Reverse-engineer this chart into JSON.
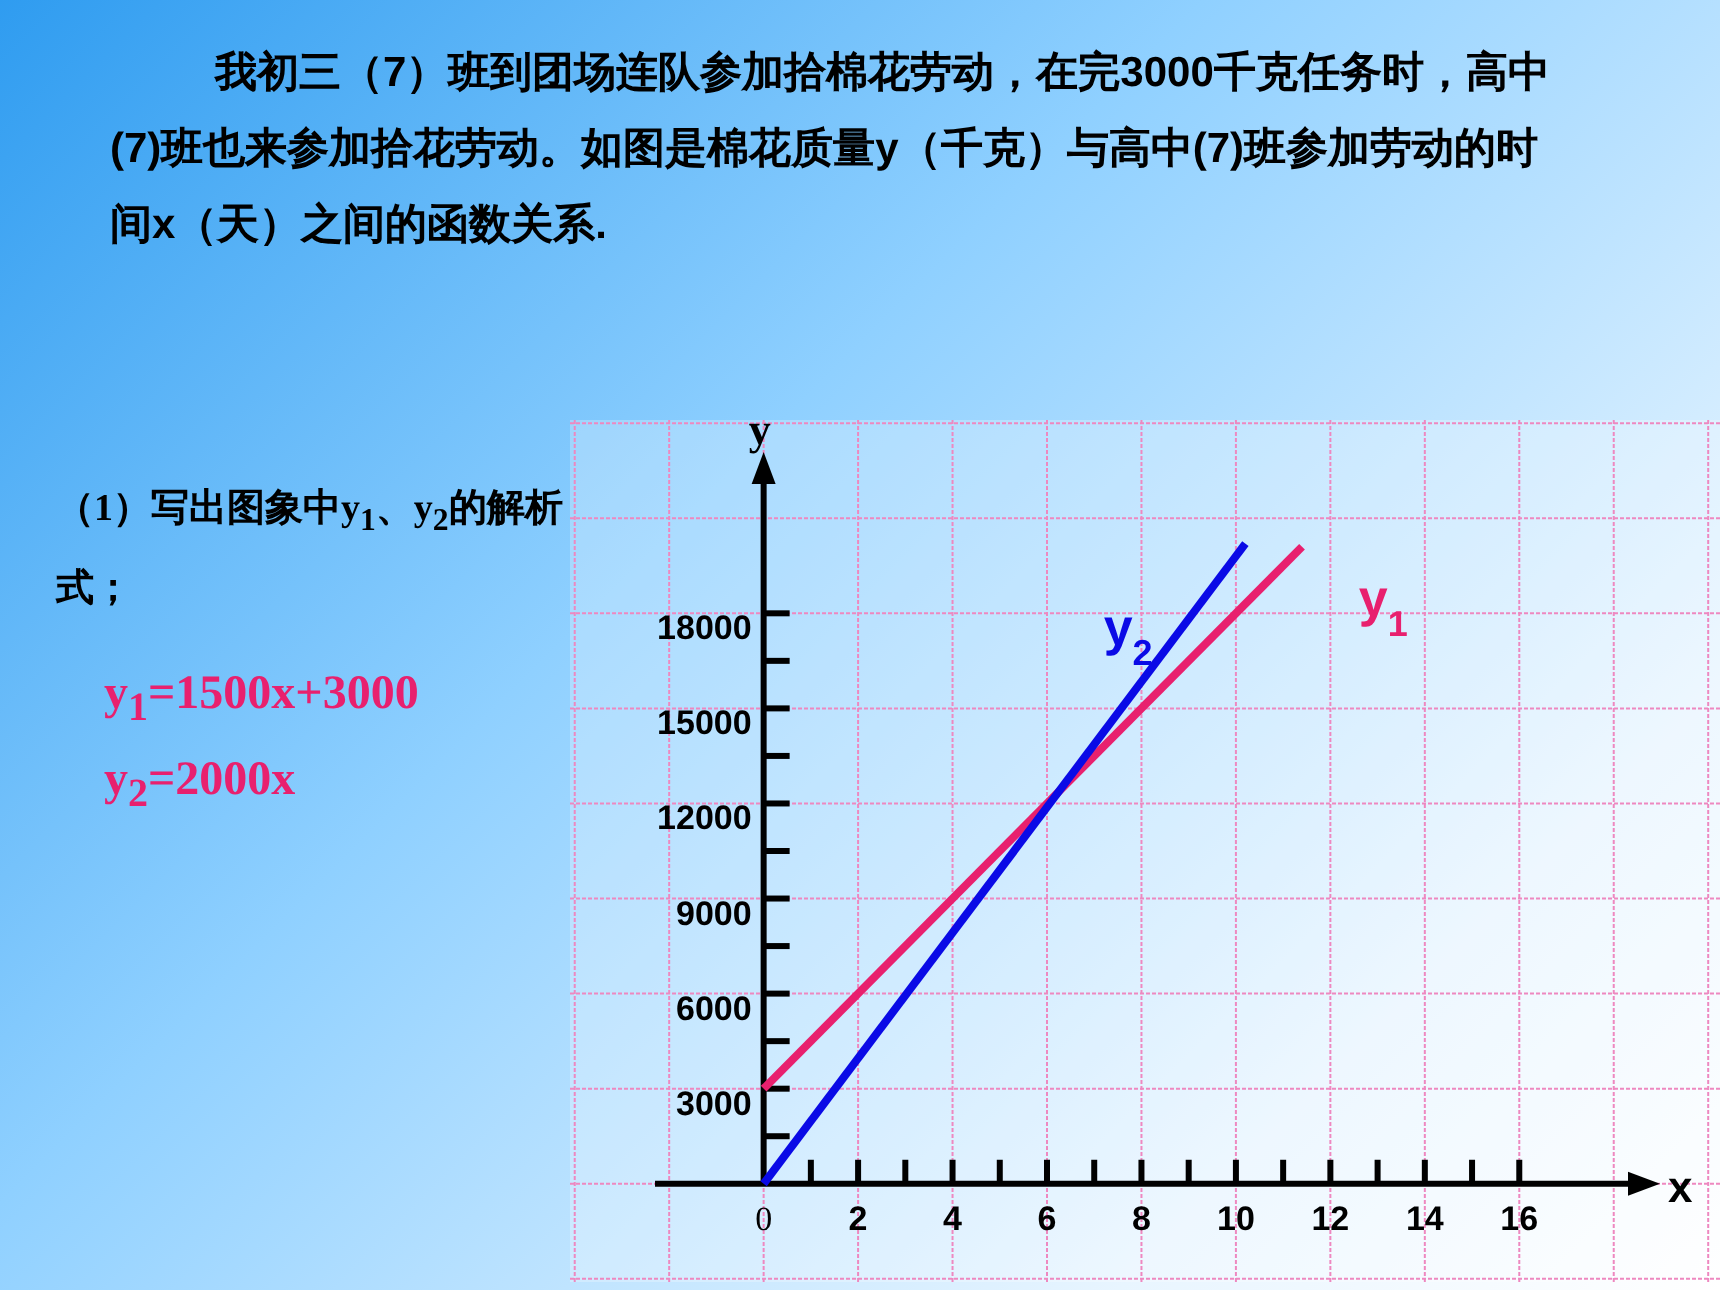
{
  "chart_data": {
    "type": "line",
    "title": "我初三（7）班到团场连队参加拾棉花劳动，在完3000千克任务时，高中(7)班也来参加拾花劳动。如图是棉花质量y（千克）与高中(7)班参加劳动的时间x（天）之间的函数关系.",
    "annotations": [
      "（1）写出图象中y$_{1}$、y$_{2}$的解析式；",
      "y$_{1}$=1500x+3000",
      "y$_{2}$=2000x"
    ],
    "xlabel": "x",
    "ylabel": "y",
    "series": [
      {
        "name": "y$_{1}$",
        "color": "#e8206e",
        "x": [
          0,
          11.4
        ],
        "values": [
          3000,
          20100
        ]
      },
      {
        "name": "y$_{2}$",
        "color": "#0a0ae6",
        "x": [
          0,
          10.2
        ],
        "values": [
          0,
          20200
        ]
      }
    ],
    "xlim": [
      -4.1,
      20.25
    ],
    "ylim": [
      -3100,
      24100
    ],
    "xticks": [
      0,
      {
        "value": 1,
        "label": null
      },
      2,
      {
        "value": 3,
        "label": null
      },
      4,
      {
        "value": 5,
        "label": null
      },
      6,
      {
        "value": 7,
        "label": null
      },
      8,
      {
        "value": 9,
        "label": null
      },
      10,
      {
        "value": 11,
        "label": null
      },
      12,
      {
        "value": 13,
        "label": null
      },
      14,
      {
        "value": 15,
        "label": null
      },
      16
    ],
    "yticks": [
      {
        "value": 1500,
        "label": null
      },
      3000,
      {
        "value": 4500,
        "label": null
      },
      6000,
      {
        "value": 7500,
        "label": null
      },
      9000,
      {
        "value": 10500,
        "label": null
      },
      12000,
      {
        "value": 13500,
        "label": null
      },
      15000,
      {
        "value": 16500,
        "label": null
      },
      18000
    ],
    "grid": true,
    "marker": "none",
    "line_style": "solid"
  }
}
